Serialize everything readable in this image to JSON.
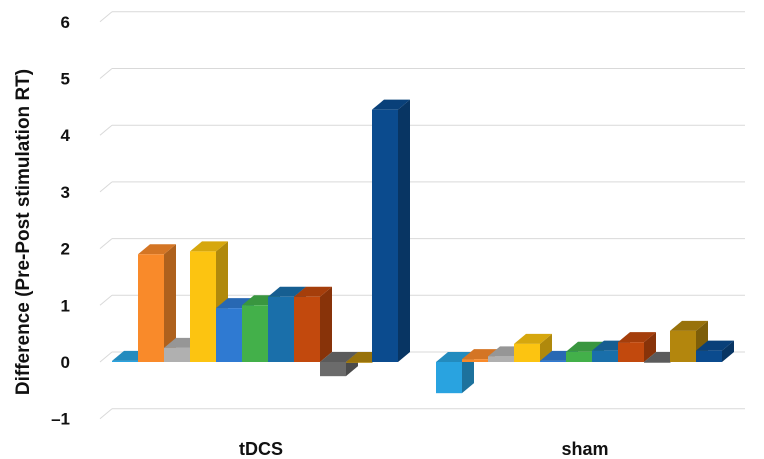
{
  "chart_data": {
    "type": "bar",
    "title": "",
    "xlabel": "",
    "ylabel": "Difference (Pre-Post stimulation RT)",
    "categories": [
      "tDCS",
      "sham"
    ],
    "ylim": [
      -1,
      6
    ],
    "yticks": [
      -1,
      0,
      1,
      2,
      3,
      4,
      5,
      6
    ],
    "ytick_labels": [
      "–1",
      "0",
      "1",
      "2",
      "3",
      "4",
      "5",
      "6"
    ],
    "grid": true,
    "legend": "none",
    "style": "3d-clustered-columns",
    "series": [
      {
        "color": "#29a3e0",
        "values": [
          0.02,
          -0.55
        ]
      },
      {
        "color": "#f98a2a",
        "values": [
          1.9,
          0.05
        ]
      },
      {
        "color": "#b0b0b0",
        "values": [
          0.25,
          0.1
        ]
      },
      {
        "color": "#fcc411",
        "values": [
          1.95,
          0.32
        ]
      },
      {
        "color": "#2f7ad2",
        "values": [
          0.95,
          0.02
        ]
      },
      {
        "color": "#43b04a",
        "values": [
          1.0,
          0.18
        ]
      },
      {
        "color": "#1a6faa",
        "values": [
          1.15,
          0.2
        ]
      },
      {
        "color": "#c2490d",
        "values": [
          1.15,
          0.35
        ]
      },
      {
        "color": "#6b6b6b",
        "values": [
          -0.25,
          0.0
        ]
      },
      {
        "color": "#b3860d",
        "values": [
          0.0,
          0.55
        ]
      },
      {
        "color": "#0b4b8e",
        "values": [
          4.45,
          0.2
        ]
      }
    ]
  }
}
